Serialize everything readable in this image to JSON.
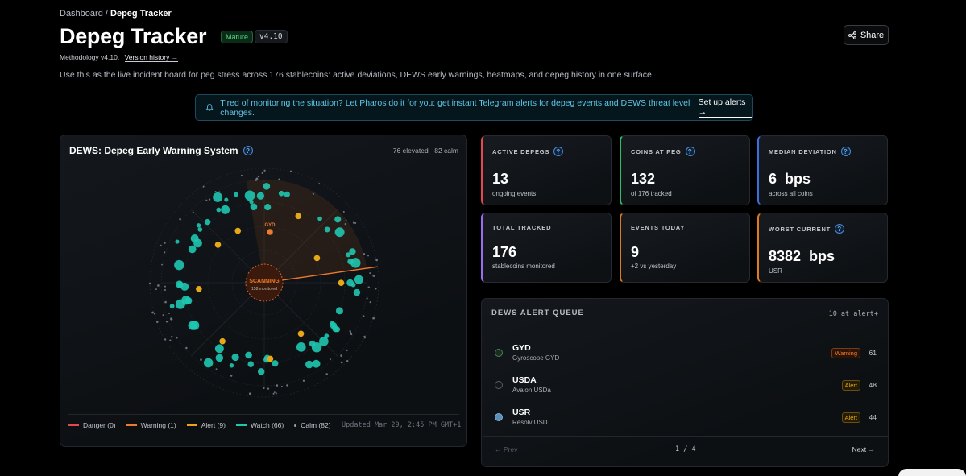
{
  "breadcrumb": {
    "root": "Dashboard",
    "sep": "/",
    "current": "Depeg Tracker"
  },
  "header": {
    "title": "Depeg Tracker",
    "status_badge": "Mature",
    "version_badge": "v4.10",
    "share_label": "Share"
  },
  "methodology": {
    "label": "Methodology v4.10.",
    "link": "Version history →"
  },
  "description": "Use this as the live incident board for peg stress across 176 stablecoins: active deviations, DEWS early warnings, heatmaps, and depeg history in one surface.",
  "banner": {
    "text": "Tired of monitoring the situation? Let Pharos do it for you: get instant Telegram alerts for depeg events and DEWS threat level changes.",
    "cta": "Set up alerts →"
  },
  "dews": {
    "title": "DEWS: Depeg Early Warning System",
    "count": "76 elevated · 82 calm",
    "radar_center_label": "SCANNING",
    "radar_center_sub": "158 monitored",
    "radar_highlight": "GYD",
    "legend": [
      {
        "label": "Danger (0)",
        "color": "#e5484d"
      },
      {
        "label": "Warning (1)",
        "color": "#f07a2c"
      },
      {
        "label": "Alert (9)",
        "color": "#e6a817"
      },
      {
        "label": "Watch (66)",
        "color": "#1fc7b0"
      },
      {
        "label": "Calm (82)",
        "color": "#9aa0a8"
      }
    ],
    "updated": "Updated Mar 29, 2:45 PM GMT+1"
  },
  "stats": [
    {
      "label": "ACTIVE DEPEGS",
      "value": "13",
      "sub": "ongoing events",
      "accent": "#e5484d",
      "help": true
    },
    {
      "label": "COINS AT PEG",
      "value": "132",
      "sub": "of 176 tracked",
      "accent": "#2fbf6a",
      "help": true
    },
    {
      "label": "MEDIAN DEVIATION",
      "value": "6  bps",
      "sub": "across all coins",
      "accent": "#3b6fe0",
      "help": true
    },
    {
      "label": "TOTAL TRACKED",
      "value": "176",
      "sub": "stablecoins monitored",
      "accent": "#9b6cf0",
      "help": false
    },
    {
      "label": "EVENTS TODAY",
      "value": "9",
      "sub": "+2 vs yesterday",
      "accent": "#e07a1f",
      "help": false
    },
    {
      "label": "WORST CURRENT",
      "value": "8382  bps",
      "sub": "USR",
      "accent": "#e07a1f",
      "help": true
    }
  ],
  "queue": {
    "title": "DEWS ALERT QUEUE",
    "count": "10 at alert+",
    "rows": [
      {
        "symbol": "GYD",
        "name": "Gyroscope GYD",
        "level": "Warning",
        "score": "61",
        "icon_color": "#2f8f4a"
      },
      {
        "symbol": "USDA",
        "name": "Avalon USDa",
        "level": "Alert",
        "score": "48",
        "icon_color": "#2a2e34"
      },
      {
        "symbol": "USR",
        "name": "Resolv USD",
        "level": "Alert",
        "score": "44",
        "icon_color": "#5a8fb8"
      }
    ],
    "prev": "← Prev",
    "page": "1 / 4",
    "next": "Next →"
  },
  "colors": {
    "warning": "#f07a2c",
    "alert": "#e6a817",
    "watch": "#1fc7b0"
  }
}
